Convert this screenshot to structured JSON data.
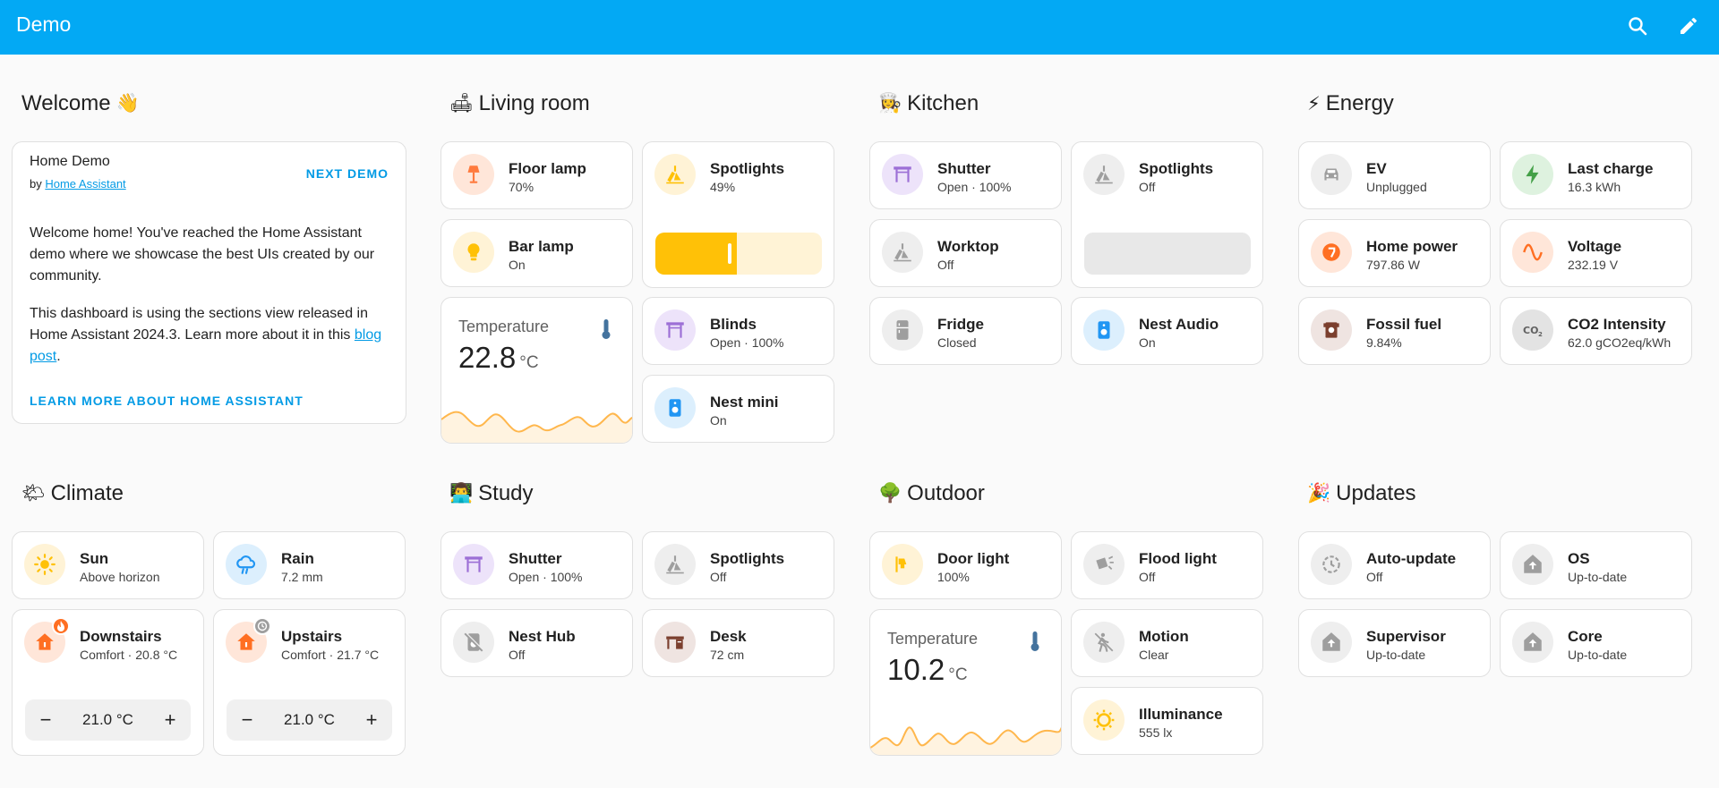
{
  "header": {
    "title": "Demo"
  },
  "welcome": {
    "title": "Welcome",
    "emoji": "👋",
    "demo_name": "Home Demo",
    "by_prefix": "by ",
    "by_link": "Home Assistant",
    "next_label": "NEXT DEMO",
    "para1": "Welcome home! You've reached the Home Assistant demo where we showcase the best UIs created by our community.",
    "para2_text": "This dashboard is using the sections view released in Home Assistant 2024.3. Learn more about it in this ",
    "para2_link": "blog post",
    "para2_end": ".",
    "learn_label": "LEARN MORE ABOUT HOME ASSISTANT"
  },
  "living": {
    "title": "Living room",
    "emoji": "🛋",
    "floor_lamp": {
      "name": "Floor lamp",
      "state": "70%"
    },
    "spotlights": {
      "name": "Spotlights",
      "state": "49%",
      "level": 0.49
    },
    "bar_lamp": {
      "name": "Bar lamp",
      "state": "On"
    },
    "temperature": {
      "label": "Temperature",
      "value": "22.8",
      "unit": "°C"
    },
    "blinds": {
      "name": "Blinds",
      "state": "Open · 100%"
    },
    "nest_mini": {
      "name": "Nest mini",
      "state": "On"
    }
  },
  "kitchen": {
    "title": "Kitchen",
    "emoji": "👩‍🍳",
    "shutter": {
      "name": "Shutter",
      "state": "Open · 100%"
    },
    "spotlights": {
      "name": "Spotlights",
      "state": "Off",
      "level": 0
    },
    "worktop": {
      "name": "Worktop",
      "state": "Off"
    },
    "fridge": {
      "name": "Fridge",
      "state": "Closed"
    },
    "nest_audio": {
      "name": "Nest Audio",
      "state": "On"
    }
  },
  "energy": {
    "title": "Energy",
    "emoji": "⚡",
    "ev": {
      "name": "EV",
      "state": "Unplugged"
    },
    "last_charge": {
      "name": "Last charge",
      "state": "16.3 kWh"
    },
    "home_power": {
      "name": "Home power",
      "state": "797.86 W"
    },
    "voltage": {
      "name": "Voltage",
      "state": "232.19 V"
    },
    "fossil": {
      "name": "Fossil fuel",
      "state": "9.84%"
    },
    "co2": {
      "name": "CO2 Intensity",
      "state": "62.0 gCO2eq/kWh"
    }
  },
  "climate": {
    "title": "Climate",
    "emoji": "🌤",
    "sun": {
      "name": "Sun",
      "state": "Above horizon"
    },
    "rain": {
      "name": "Rain",
      "state": "7.2 mm"
    },
    "downstairs": {
      "name": "Downstairs",
      "state": "Comfort · 20.8 °C",
      "target": "21.0 °C"
    },
    "upstairs": {
      "name": "Upstairs",
      "state": "Comfort · 21.7 °C",
      "target": "21.0 °C"
    },
    "minus": "−",
    "plus": "+"
  },
  "study": {
    "title": "Study",
    "emoji": "👨‍💻",
    "shutter": {
      "name": "Shutter",
      "state": "Open · 100%"
    },
    "spotlights": {
      "name": "Spotlights",
      "state": "Off"
    },
    "nest_hub": {
      "name": "Nest Hub",
      "state": "Off"
    },
    "desk": {
      "name": "Desk",
      "state": "72 cm"
    }
  },
  "outdoor": {
    "title": "Outdoor",
    "emoji": "🌳",
    "door_light": {
      "name": "Door light",
      "state": "100%"
    },
    "flood_light": {
      "name": "Flood light",
      "state": "Off"
    },
    "temperature": {
      "label": "Temperature",
      "value": "10.2",
      "unit": "°C"
    },
    "motion": {
      "name": "Motion",
      "state": "Clear"
    },
    "illuminance": {
      "name": "Illuminance",
      "state": "555 lx"
    }
  },
  "updates": {
    "title": "Updates",
    "emoji": "🎉",
    "auto_update": {
      "name": "Auto-update",
      "state": "Off"
    },
    "os": {
      "name": "OS",
      "state": "Up-to-date"
    },
    "supervisor": {
      "name": "Supervisor",
      "state": "Up-to-date"
    },
    "core": {
      "name": "Core",
      "state": "Up-to-date"
    }
  },
  "colors": {
    "accent": "#03a9f4",
    "light": "#ffc107",
    "light_bg": "#fff3d6",
    "cover": "#9c6fd6",
    "cover_bg": "#ede3fa",
    "media": "#2196f3",
    "media_bg": "#dceffd",
    "off": "#9e9e9e",
    "off_bg": "#eeeeee",
    "heat": "#ff6f22",
    "heat_bg": "#ffe6d9",
    "energy_green": "#43a047",
    "graph": "#ffb74d"
  }
}
